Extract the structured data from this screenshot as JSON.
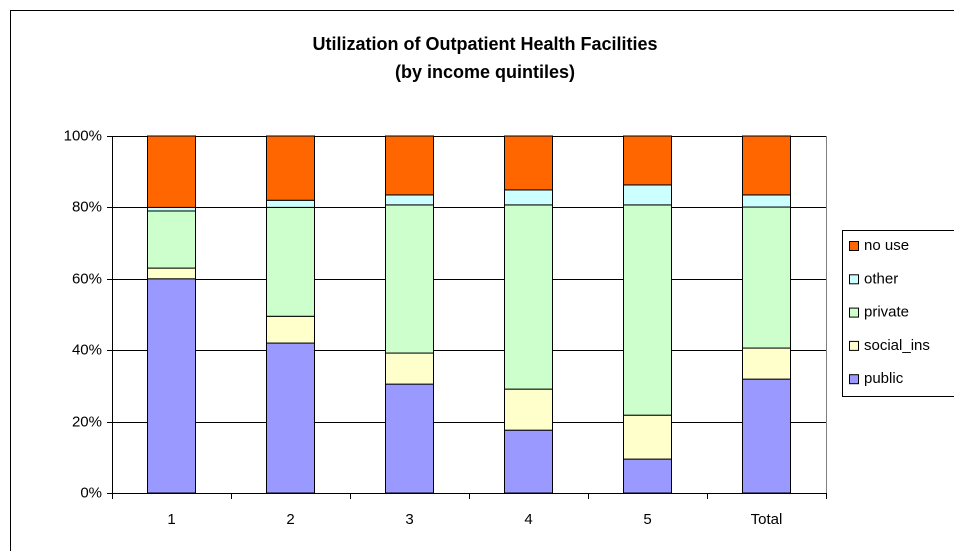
{
  "chart_data": {
    "type": "stacked_bar",
    "title": "Utilization of Outpatient Health Facilities",
    "subtitle": "(by income quintiles)",
    "categories": [
      "1",
      "2",
      "3",
      "4",
      "5",
      "Total"
    ],
    "series": [
      {
        "name": "public",
        "color": "#9999ff",
        "values": [
          60,
          42,
          30.5,
          17.6,
          9.5,
          31.9
        ]
      },
      {
        "name": "social_ins",
        "color": "#ffffcc",
        "values": [
          3,
          7.5,
          8.7,
          11.5,
          12.3,
          8.7
        ]
      },
      {
        "name": "private",
        "color": "#ccffcc",
        "values": [
          16,
          30.5,
          41.5,
          51.6,
          58.9,
          39.5
        ]
      },
      {
        "name": "other",
        "color": "#ccffff",
        "values": [
          1,
          2,
          2.8,
          4.2,
          5.6,
          3.4
        ]
      },
      {
        "name": "no use",
        "color": "#ff6600",
        "values": [
          20,
          18,
          16.5,
          15.1,
          13.7,
          16.5
        ]
      }
    ],
    "ylim": [
      0,
      100
    ],
    "yticks": [
      {
        "value": 0,
        "label": "0%"
      },
      {
        "value": 20,
        "label": "20%"
      },
      {
        "value": 40,
        "label": "40%"
      },
      {
        "value": 60,
        "label": "60%"
      },
      {
        "value": 80,
        "label": "80%"
      },
      {
        "value": 100,
        "label": "100%"
      }
    ],
    "grid": true,
    "legend": "right"
  }
}
